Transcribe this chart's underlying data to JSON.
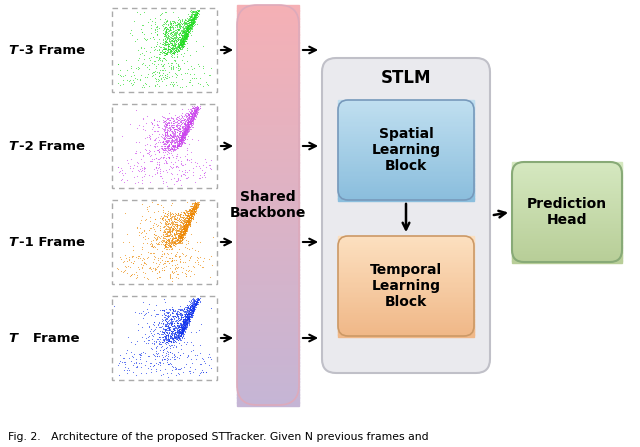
{
  "frame_labels_italic": [
    "T",
    "T",
    "T",
    "T"
  ],
  "frame_labels_rest": [
    "-3 Frame",
    "-2 Frame",
    "-1 Frame",
    "   Frame"
  ],
  "frame_colors": [
    "#22dd22",
    "#cc44ee",
    "#ee8800",
    "#1133ee"
  ],
  "backbone_label": "Shared\nBackbone",
  "stlm_label": "STLM",
  "spatial_label": "Spatial\nLearning\nBlock",
  "temporal_label": "Temporal\nLearning\nBlock",
  "prediction_label": "Prediction\nHead",
  "backbone_gradient_top": "#f5b0b5",
  "backbone_gradient_bottom": "#c5b5d5",
  "spatial_color_top": "#c0dff0",
  "spatial_color_bot": "#8bbedd",
  "temporal_color_top": "#fce0c0",
  "temporal_color_bot": "#f0b888",
  "prediction_color_top": "#d5e8c0",
  "prediction_color_bot": "#b8ce98",
  "stlm_box_color": "#e8e8ec",
  "bg_color": "#ffffff",
  "caption": "Fig. 2.   Architecture of the proposed STTracker. Given N previous frames and"
}
